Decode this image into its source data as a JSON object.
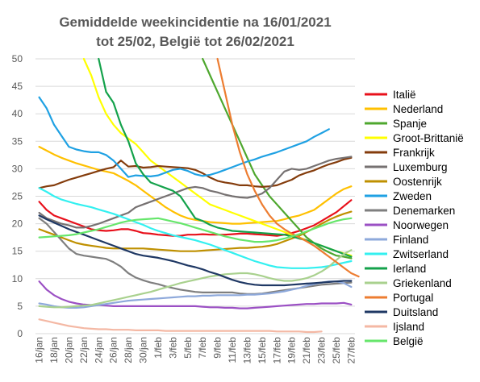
{
  "chart_data": {
    "type": "line",
    "title_lines": [
      "Gemiddelde weekincidentie  na 16/01/2021",
      "tot 25/02, België tot 26/02/2021"
    ],
    "xlabel": "",
    "ylabel": "",
    "ylim": [
      0,
      50
    ],
    "y_ticks": [
      0,
      5,
      10,
      15,
      20,
      25,
      30,
      35,
      40,
      45,
      50
    ],
    "x_categories": [
      "16/jan",
      "17/jan",
      "18/jan",
      "19/jan",
      "20/jan",
      "21/jan",
      "22/jan",
      "23/jan",
      "24/jan",
      "25/jan",
      "26/jan",
      "27/jan",
      "28/jan",
      "29/jan",
      "30/jan",
      "31/jan",
      "1/feb",
      "2/feb",
      "3/feb",
      "4/feb",
      "5/feb",
      "6/feb",
      "7/feb",
      "8/feb",
      "9/feb",
      "10/feb",
      "11/feb",
      "12/feb",
      "13/feb",
      "14/feb",
      "15/feb",
      "16/feb",
      "17/feb",
      "18/feb",
      "19/feb",
      "20/feb",
      "21/feb",
      "22/feb",
      "23/feb",
      "24/feb",
      "25/feb",
      "26/feb",
      "27/feb"
    ],
    "x_tick_labels": [
      "16/jan",
      "18/jan",
      "20/jan",
      "22/jan",
      "24/jan",
      "26/jan",
      "28/jan",
      "30/jan",
      "1/feb",
      "3/feb",
      "5/feb",
      "7/feb",
      "9/feb",
      "11/feb",
      "13/feb",
      "15/feb",
      "17/feb",
      "19/feb",
      "21/feb",
      "23/feb",
      "25/feb",
      "27/feb"
    ],
    "grid": "horizontal",
    "legend_position": "right",
    "series": [
      {
        "name": "Italië",
        "color": "#e8101b",
        "start": 0,
        "values": [
          24,
          22.5,
          21.5,
          21,
          20.5,
          20,
          19.5,
          19,
          18.8,
          18.7,
          18.8,
          19,
          19,
          18.7,
          18.3,
          18.2,
          18,
          17.9,
          17.8,
          17.8,
          18,
          18,
          18.1,
          18,
          18,
          18,
          18.1,
          18.2,
          18.2,
          18.1,
          18,
          17.9,
          17.8,
          18,
          18.3,
          18.7,
          19.2,
          19.7,
          20.5,
          21.3,
          22.1,
          23.2,
          24.3
        ]
      },
      {
        "name": "Nederland",
        "color": "#ffc000",
        "start": 0,
        "values": [
          34,
          33.3,
          32.6,
          32,
          31.5,
          31,
          30.6,
          30.2,
          29.8,
          29.5,
          29.2,
          28.5,
          27.8,
          27,
          26,
          25,
          24,
          23,
          22.2,
          21.5,
          21,
          20.7,
          20.5,
          20.3,
          20.2,
          20.1,
          20,
          20,
          20.1,
          20.2,
          20.3,
          20.4,
          20.5,
          20.8,
          21.2,
          21.5,
          22,
          22.5,
          23.5,
          24.5,
          25.5,
          26.3,
          26.8
        ]
      },
      {
        "name": "Spanje",
        "color": "#4ea72e",
        "start": 22,
        "values": [
          50,
          47,
          44,
          41,
          38,
          35,
          32,
          29,
          27,
          25,
          23.5,
          22,
          20.5,
          19,
          17.5,
          16.5,
          15.5,
          14.8,
          14.2,
          14,
          13.7
        ]
      },
      {
        "name": "Groot-Brittanië",
        "color": "#ffff00",
        "start": 6,
        "values": [
          50,
          47,
          43,
          40,
          38,
          36.5,
          35.5,
          34.5,
          33,
          31.5,
          30.5,
          29.5,
          28.5,
          27.5,
          26.5,
          25.5,
          24.5,
          23.5,
          23,
          22.5,
          22,
          21.5,
          21,
          20.5,
          20,
          19.5,
          19,
          18.5,
          18,
          17.5,
          17,
          16.5,
          16,
          15.5,
          15,
          14.6,
          14.2
        ]
      },
      {
        "name": "Frankrijk",
        "color": "#843c0c",
        "start": 0,
        "values": [
          26.5,
          26.8,
          27,
          27.5,
          28,
          28.4,
          28.8,
          29.2,
          29.6,
          30,
          30.3,
          31.5,
          30.4,
          30.5,
          30.2,
          30.3,
          30.5,
          30.4,
          30.3,
          30.2,
          30.1,
          29.8,
          29.2,
          28.4,
          27.8,
          27.5,
          27.3,
          27,
          27,
          26.8,
          26.7,
          26.8,
          27,
          27.5,
          28,
          28.8,
          29.3,
          29.7,
          30.3,
          30.8,
          31.2,
          31.7,
          32
        ]
      },
      {
        "name": "Luxemburg",
        "color": "#767171",
        "start": 0,
        "values": [
          22,
          21,
          20.5,
          20,
          19.7,
          19.3,
          19.3,
          19.6,
          20,
          20.5,
          21,
          21.5,
          22,
          23,
          23.5,
          24,
          24.5,
          25,
          25.5,
          26,
          26.5,
          26.7,
          26.5,
          26,
          25.7,
          25.3,
          25,
          24.8,
          24.7,
          25,
          25.5,
          26.5,
          28,
          29.5,
          30,
          29.8,
          30,
          30.5,
          31,
          31.5,
          31.8,
          32,
          32.2
        ]
      },
      {
        "name": "Oostenrijk",
        "color": "#bf9000",
        "start": 0,
        "values": [
          19,
          18.5,
          18,
          17.5,
          17,
          16.5,
          16.2,
          16,
          15.8,
          15.6,
          15.5,
          15.5,
          15.5,
          15.5,
          15.5,
          15.4,
          15.3,
          15.2,
          15.1,
          15,
          15,
          15,
          15.1,
          15.2,
          15.3,
          15.4,
          15.5,
          15.6,
          15.6,
          15.7,
          15.8,
          16,
          16.3,
          16.8,
          17.3,
          17.8,
          18.5,
          19.2,
          20,
          20.7,
          21.3,
          21.8,
          22.2
        ]
      },
      {
        "name": "Zweden",
        "color": "#1fa1e3",
        "start": 0,
        "values": [
          43,
          41,
          38,
          36,
          34,
          33.5,
          33.2,
          33,
          33,
          32.5,
          31.5,
          30,
          28.5,
          28.8,
          28.7,
          28.6,
          28.8,
          29.3,
          29.8,
          30,
          29.6,
          29,
          28.7,
          28.9,
          29.3,
          29.8,
          30.3,
          30.8,
          31.3,
          31.7,
          32.2,
          32.6,
          33,
          33.5,
          34,
          34.5,
          35,
          35.8,
          36.5,
          37.2
        ]
      },
      {
        "name": "Denemarken",
        "color": "#7f7f7f",
        "start": 0,
        "values": [
          21,
          20,
          18.5,
          17,
          15.5,
          14.5,
          14.2,
          14,
          13.8,
          13.6,
          13,
          12.2,
          11,
          10.2,
          9.7,
          9.3,
          9,
          8.6,
          8.3,
          8,
          7.8,
          7.6,
          7.5,
          7.5,
          7.5,
          7.5,
          7.5,
          7.3,
          7.2,
          7.2,
          7.3,
          7.5,
          7.7,
          7.9,
          8.1,
          8.3,
          8.5,
          8.7,
          8.9,
          9,
          9.1,
          9.2,
          9.3
        ]
      },
      {
        "name": "Noorwegen",
        "color": "#9b50c4",
        "start": 0,
        "values": [
          9.5,
          8,
          7,
          6.3,
          5.8,
          5.5,
          5.3,
          5.2,
          5.2,
          5.1,
          5,
          5,
          5,
          5,
          5,
          5,
          5,
          5,
          5,
          5,
          5,
          5,
          4.9,
          4.8,
          4.8,
          4.7,
          4.7,
          4.6,
          4.6,
          4.7,
          4.8,
          4.9,
          5,
          5.1,
          5.2,
          5.3,
          5.4,
          5.4,
          5.5,
          5.5,
          5.5,
          5.6,
          5.3
        ]
      },
      {
        "name": "Finland",
        "color": "#8ea9db",
        "start": 0,
        "values": [
          5.5,
          5.3,
          5,
          4.8,
          4.7,
          4.7,
          4.8,
          5,
          5.2,
          5.4,
          5.6,
          5.8,
          6,
          6.1,
          6.2,
          6.3,
          6.4,
          6.5,
          6.6,
          6.7,
          6.8,
          6.8,
          6.9,
          6.9,
          7,
          7,
          7,
          7,
          7.1,
          7.1,
          7.2,
          7.3,
          7.5,
          7.7,
          8,
          8.3,
          8.7,
          9,
          9.3,
          9.5,
          9.5,
          9.2,
          8.5
        ]
      },
      {
        "name": "Zwitserland",
        "color": "#33f0f0",
        "start": 0,
        "values": [
          26.5,
          25.8,
          25,
          24.4,
          24,
          23.6,
          23.3,
          23,
          22.6,
          22.2,
          21.8,
          21.3,
          20.8,
          20.3,
          19.8,
          19.2,
          18.7,
          18.3,
          17.9,
          17.6,
          17.3,
          17,
          16.6,
          16.2,
          15.7,
          15.2,
          14.7,
          14.2,
          13.7,
          13.2,
          12.8,
          12.4,
          12.1,
          12,
          11.9,
          11.9,
          11.9,
          12,
          12.1,
          12.3,
          12.6,
          12.9,
          13.2
        ]
      },
      {
        "name": "Ierland",
        "color": "#14a24b",
        "start": 8,
        "values": [
          50,
          44,
          42,
          38,
          35,
          31,
          29,
          27.5,
          27,
          26.5,
          26,
          25,
          23,
          21,
          20.5,
          19.8,
          19.3,
          19,
          18.7,
          18.6,
          18.5,
          18.4,
          18.3,
          18.2,
          18.1,
          18,
          17.7,
          17.3,
          17,
          16.5,
          16,
          15.5,
          15,
          14.5,
          14
        ]
      },
      {
        "name": "Griekenland",
        "color": "#a9d18e",
        "start": 0,
        "values": [
          5,
          4.9,
          4.8,
          4.8,
          4.9,
          5,
          5.1,
          5.2,
          5.5,
          5.8,
          6.1,
          6.4,
          6.7,
          7,
          7.3,
          7.6,
          8,
          8.4,
          8.8,
          9.2,
          9.5,
          9.8,
          10.1,
          10.4,
          10.6,
          10.8,
          10.9,
          11,
          11,
          10.8,
          10.5,
          10.1,
          9.8,
          9.6,
          9.6,
          9.8,
          10.1,
          10.6,
          11.3,
          12.2,
          13.4,
          14.5,
          15.2
        ]
      },
      {
        "name": "Portugal",
        "color": "#ed7d31",
        "start": 24,
        "values": [
          50,
          44,
          38,
          33,
          29,
          26,
          23.5,
          21.5,
          20,
          19,
          18.2,
          17.5,
          16.8,
          16,
          15,
          14,
          13,
          12,
          11,
          10.4
        ]
      },
      {
        "name": "Duitsland",
        "color": "#1f3864",
        "start": 0,
        "values": [
          21.5,
          20.8,
          20.2,
          19.6,
          19,
          18.5,
          18,
          17.5,
          17,
          16.5,
          16,
          15.5,
          15,
          14.5,
          14.2,
          14,
          13.8,
          13.5,
          13.2,
          12.8,
          12.4,
          12.1,
          11.7,
          11.2,
          10.8,
          10.3,
          9.8,
          9.4,
          9.1,
          8.9,
          8.8,
          8.8,
          8.8,
          8.8,
          8.9,
          9,
          9.1,
          9.2,
          9.3,
          9.4,
          9.5,
          9.6,
          9.6
        ]
      },
      {
        "name": "Ijsland",
        "color": "#f4b8a4",
        "start": 0,
        "values": [
          2.6,
          2.3,
          2,
          1.7,
          1.4,
          1.2,
          1,
          0.9,
          0.8,
          0.8,
          0.7,
          0.7,
          0.7,
          0.6,
          0.6,
          0.6,
          0.6,
          0.5,
          0.5,
          0.5,
          0.5,
          0.5,
          0.5,
          0.5,
          0.5,
          0.5,
          0.5,
          0.5,
          0.5,
          0.5,
          0.5,
          0.5,
          0.4,
          0.4,
          0.4,
          0.4,
          0.3,
          0.3,
          0.4
        ]
      },
      {
        "name": "België",
        "color": "#66e66b",
        "start": 0,
        "values": [
          17.5,
          17.6,
          17.7,
          17.8,
          17.9,
          18.1,
          18.4,
          18.7,
          19,
          19.4,
          19.8,
          20.2,
          20.5,
          20.7,
          20.8,
          20.9,
          21,
          20.7,
          20.4,
          20.1,
          19.7,
          19.3,
          18.9,
          18.5,
          18.1,
          17.7,
          17.4,
          17.1,
          16.9,
          16.7,
          16.7,
          16.8,
          17,
          17.3,
          17.7,
          18.1,
          18.6,
          19.1,
          19.6,
          20.1,
          20.5,
          20.8,
          21
        ]
      }
    ]
  }
}
